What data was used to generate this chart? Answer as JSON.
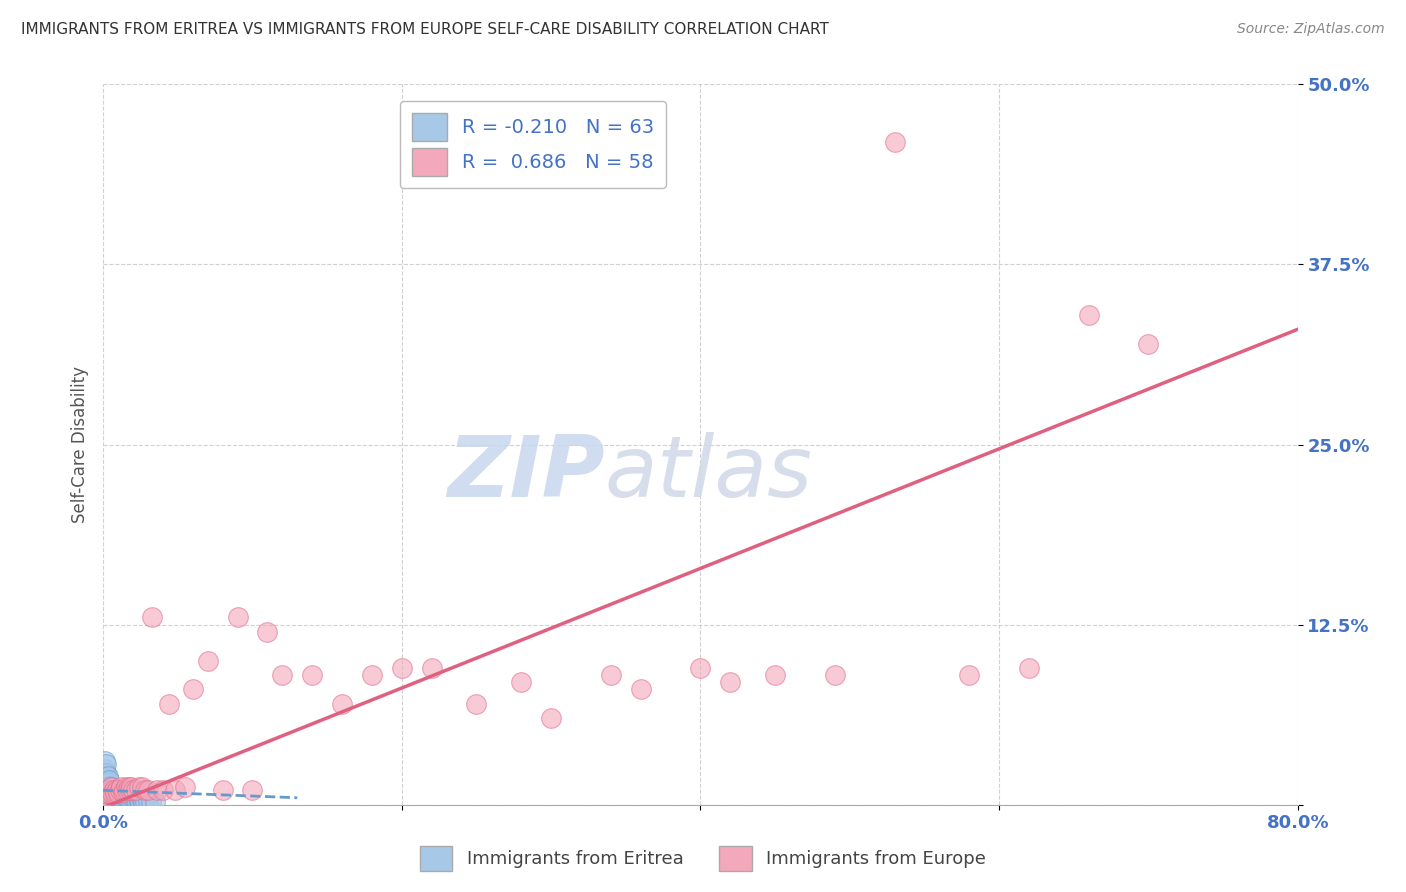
{
  "title": "IMMIGRANTS FROM ERITREA VS IMMIGRANTS FROM EUROPE SELF-CARE DISABILITY CORRELATION CHART",
  "source": "Source: ZipAtlas.com",
  "ylabel": "Self-Care Disability",
  "xlim": [
    0,
    0.8
  ],
  "ylim": [
    0,
    0.5
  ],
  "eritrea_color": "#a8c8e8",
  "eritrea_edge": "#6699cc",
  "europe_color": "#f4a8bc",
  "europe_edge": "#e07090",
  "eritrea_line_color": "#6699cc",
  "europe_line_color": "#e06080",
  "eritrea_R": -0.21,
  "eritrea_N": 63,
  "europe_R": 0.686,
  "europe_N": 58,
  "legend_label_eritrea": "Immigrants from Eritrea",
  "legend_label_europe": "Immigrants from Europe",
  "watermark_zip": "ZIP",
  "watermark_atlas": "atlas",
  "background_color": "#ffffff",
  "grid_color": "#cccccc",
  "tick_color": "#4472c4",
  "title_color": "#333333",
  "source_color": "#888888",
  "ylabel_color": "#555555",
  "eritrea_x": [
    0.001,
    0.001,
    0.001,
    0.001,
    0.001,
    0.002,
    0.002,
    0.002,
    0.002,
    0.002,
    0.002,
    0.002,
    0.002,
    0.003,
    0.003,
    0.003,
    0.003,
    0.003,
    0.003,
    0.004,
    0.004,
    0.004,
    0.004,
    0.004,
    0.005,
    0.005,
    0.005,
    0.005,
    0.006,
    0.006,
    0.006,
    0.007,
    0.007,
    0.007,
    0.008,
    0.008,
    0.009,
    0.009,
    0.01,
    0.01,
    0.011,
    0.011,
    0.012,
    0.012,
    0.013,
    0.014,
    0.015,
    0.016,
    0.017,
    0.018,
    0.019,
    0.02,
    0.021,
    0.022,
    0.023,
    0.024,
    0.025,
    0.026,
    0.027,
    0.028,
    0.03,
    0.032,
    0.035
  ],
  "eritrea_y": [
    0.01,
    0.015,
    0.02,
    0.025,
    0.03,
    0.005,
    0.008,
    0.01,
    0.012,
    0.015,
    0.018,
    0.022,
    0.028,
    0.005,
    0.008,
    0.01,
    0.013,
    0.016,
    0.02,
    0.004,
    0.007,
    0.01,
    0.013,
    0.017,
    0.003,
    0.006,
    0.009,
    0.012,
    0.003,
    0.006,
    0.009,
    0.002,
    0.005,
    0.008,
    0.003,
    0.006,
    0.002,
    0.005,
    0.002,
    0.005,
    0.002,
    0.004,
    0.002,
    0.004,
    0.002,
    0.002,
    0.002,
    0.003,
    0.002,
    0.002,
    0.002,
    0.002,
    0.003,
    0.002,
    0.002,
    0.002,
    0.002,
    0.003,
    0.002,
    0.002,
    0.002,
    0.002,
    0.002
  ],
  "europe_x": [
    0.001,
    0.002,
    0.003,
    0.004,
    0.005,
    0.005,
    0.006,
    0.007,
    0.008,
    0.009,
    0.01,
    0.011,
    0.012,
    0.013,
    0.014,
    0.015,
    0.016,
    0.017,
    0.018,
    0.019,
    0.02,
    0.022,
    0.024,
    0.026,
    0.028,
    0.03,
    0.033,
    0.036,
    0.04,
    0.044,
    0.048,
    0.055,
    0.06,
    0.07,
    0.08,
    0.09,
    0.1,
    0.11,
    0.12,
    0.14,
    0.16,
    0.18,
    0.2,
    0.22,
    0.25,
    0.28,
    0.3,
    0.34,
    0.36,
    0.4,
    0.42,
    0.45,
    0.49,
    0.53,
    0.58,
    0.62,
    0.66,
    0.7
  ],
  "europe_y": [
    0.005,
    0.008,
    0.01,
    0.008,
    0.01,
    0.012,
    0.008,
    0.01,
    0.008,
    0.01,
    0.008,
    0.01,
    0.012,
    0.009,
    0.01,
    0.012,
    0.01,
    0.012,
    0.01,
    0.012,
    0.01,
    0.01,
    0.012,
    0.012,
    0.01,
    0.01,
    0.13,
    0.01,
    0.01,
    0.07,
    0.01,
    0.012,
    0.08,
    0.1,
    0.01,
    0.13,
    0.01,
    0.12,
    0.09,
    0.09,
    0.07,
    0.09,
    0.095,
    0.095,
    0.07,
    0.085,
    0.06,
    0.09,
    0.08,
    0.095,
    0.085,
    0.09,
    0.09,
    0.46,
    0.09,
    0.095,
    0.34,
    0.32
  ]
}
